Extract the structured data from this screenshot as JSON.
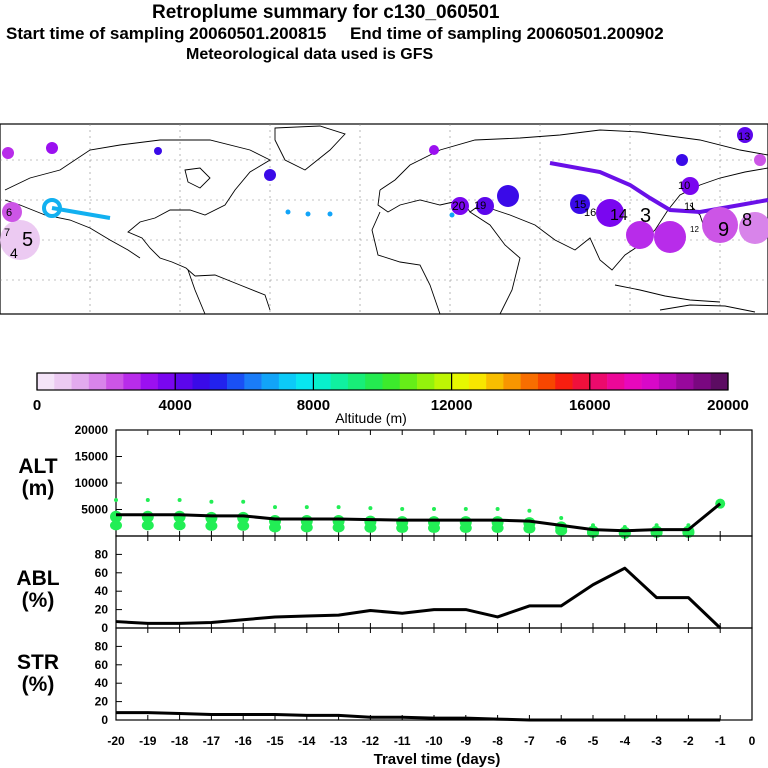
{
  "header": {
    "title": "Retroplume summary for c130_060501",
    "times": "Start time of sampling 20060501.200815     End time of sampling 20060501.200902",
    "met": "Meteorological data used is GFS"
  },
  "colorbar": {
    "title": "Altitude (m)",
    "ticks": [
      "0",
      "4000",
      "8000",
      "12000",
      "16000",
      "20000"
    ],
    "colors": [
      "#f4e4f8",
      "#eccaf2",
      "#e2aaee",
      "#d884ea",
      "#cc55e6",
      "#b82cea",
      "#9b10f0",
      "#7a06f0",
      "#5c06ec",
      "#3a0ae8",
      "#2222ee",
      "#1a50f4",
      "#1a7cf8",
      "#12a4f8",
      "#0ccaf8",
      "#08e6f0",
      "#08f0cc",
      "#10f0a0",
      "#18ee78",
      "#24ea50",
      "#3cea2c",
      "#66ee18",
      "#94f20c",
      "#bef604",
      "#e6f800",
      "#f8e600",
      "#f8be00",
      "#f89600",
      "#f86e00",
      "#f84600",
      "#f81e10",
      "#f0103c",
      "#ec0a6c",
      "#ec0898",
      "#e808bc",
      "#d808c8",
      "#b808b8",
      "#98089c",
      "#7a0880",
      "#5c0c62"
    ]
  },
  "map": {
    "text_labels": [
      "5",
      "4",
      "3",
      "9",
      "8",
      "20",
      "15",
      "13",
      "11",
      "16",
      "12",
      "14",
      "10",
      "19",
      "6",
      "7"
    ]
  },
  "chart_data": [
    {
      "type": "line",
      "panel": "ALT",
      "ylabel": "ALT\n(m)",
      "ylabel_lines": [
        "ALT",
        "(m)"
      ],
      "ylim": [
        0,
        20000
      ],
      "yticks": [
        5000,
        10000,
        15000,
        20000
      ],
      "ytick_labels": [
        "5000",
        "10000",
        "15000",
        "20000"
      ],
      "x": [
        -20,
        -19,
        -18,
        -17,
        -16,
        -15,
        -14,
        -13,
        -12,
        -11,
        -10,
        -9,
        -8,
        -7,
        -6,
        -5,
        -4,
        -3,
        -2,
        -1
      ],
      "values": [
        4000,
        4000,
        4000,
        3800,
        3800,
        3200,
        3200,
        3200,
        3100,
        3000,
        3000,
        3000,
        3000,
        2800,
        2000,
        1200,
        1000,
        1200,
        1200,
        6100
      ]
    },
    {
      "type": "line",
      "panel": "ABL",
      "ylabel_lines": [
        "ABL",
        "(%)"
      ],
      "ylim": [
        0,
        100
      ],
      "yticks": [
        0,
        20,
        40,
        60,
        80
      ],
      "ytick_labels": [
        "0",
        "20",
        "40",
        "60",
        "80"
      ],
      "x": [
        -20,
        -19,
        -18,
        -17,
        -16,
        -15,
        -14,
        -13,
        -12,
        -11,
        -10,
        -9,
        -8,
        -7,
        -6,
        -5,
        -4,
        -3,
        -2,
        -1
      ],
      "values": [
        7,
        5,
        5,
        6,
        9,
        12,
        13,
        14,
        19,
        16,
        20,
        20,
        12,
        24,
        24,
        47,
        65,
        33,
        33,
        0
      ]
    },
    {
      "type": "line",
      "panel": "STR",
      "ylabel_lines": [
        "STR",
        "(%)"
      ],
      "ylim": [
        0,
        100
      ],
      "yticks": [
        0,
        20,
        40,
        60,
        80
      ],
      "ytick_labels": [
        "0",
        "20",
        "40",
        "60",
        "80"
      ],
      "x": [
        -20,
        -19,
        -18,
        -17,
        -16,
        -15,
        -14,
        -13,
        -12,
        -11,
        -10,
        -9,
        -8,
        -7,
        -6,
        -5,
        -4,
        -3,
        -2,
        -1
      ],
      "values": [
        8,
        8,
        7,
        6,
        6,
        6,
        5,
        5,
        3,
        3,
        2,
        2,
        1,
        0,
        0,
        0,
        0,
        0,
        0,
        0
      ]
    }
  ],
  "xaxis": {
    "xlabel": "Travel time (days)",
    "xlim": [
      -20,
      0
    ],
    "tick_labels": [
      "-20",
      "-19",
      "-18",
      "-17",
      "-16",
      "-15",
      "-14",
      "-13",
      "-12",
      "-11",
      "-10",
      "-9",
      "-8",
      "-7",
      "-6",
      "-5",
      "-4",
      "-3",
      "-2",
      "-1",
      "0"
    ]
  },
  "styles": {
    "line": "#000000",
    "points": "#22ee55",
    "map_border": "#000000"
  }
}
